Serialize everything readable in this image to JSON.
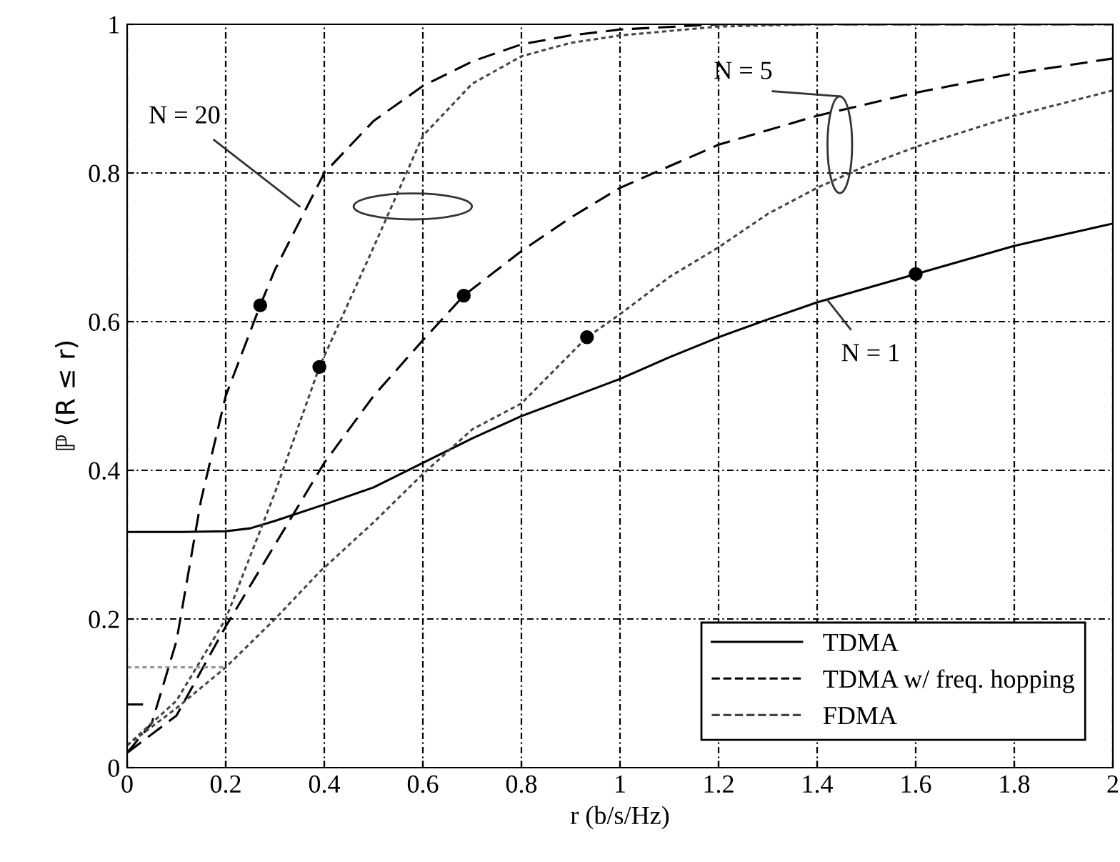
{
  "chart_data": {
    "type": "line",
    "xlabel": "r (b/s/Hz)",
    "ylabel": "ℙ (R ≤ r)",
    "xlim": [
      0,
      2
    ],
    "ylim": [
      0,
      1
    ],
    "xticks": [
      0,
      0.2,
      0.4,
      0.6,
      0.8,
      1,
      1.2,
      1.4,
      1.6,
      1.8,
      2
    ],
    "yticks": [
      0,
      0.2,
      0.4,
      0.6,
      0.8,
      1
    ],
    "grid": true,
    "legend": "bottom right",
    "series": [
      {
        "name": "TDMA",
        "color": "#000000",
        "line_style": "solid",
        "x": [
          0,
          0.1,
          0.2,
          0.25,
          0.3,
          0.4,
          0.5,
          0.6,
          0.7,
          0.8,
          0.9,
          1.0,
          1.1,
          1.2,
          1.3,
          1.4,
          1.5,
          1.6,
          1.7,
          1.8,
          1.9,
          2.0
        ],
        "values": [
          0.317,
          0.317,
          0.318,
          0.322,
          0.332,
          0.354,
          0.377,
          0.41,
          0.443,
          0.473,
          0.498,
          0.523,
          0.552,
          0.579,
          0.603,
          0.626,
          0.645,
          0.664,
          0.683,
          0.702,
          0.717,
          0.732
        ]
      },
      {
        "color": "#000000",
        "line_style": "solid",
        "x": [
          0,
          0.03
        ],
        "values": [
          0.085,
          0.085
        ]
      },
      {
        "name": "TDMA w/ freq. hopping",
        "color": "#000000",
        "line_style": "dashed",
        "x": [
          0,
          0.05,
          0.1,
          0.15,
          0.2,
          0.27,
          0.3,
          0.4,
          0.5,
          0.6,
          0.7,
          0.8,
          0.9,
          1.0,
          1.2,
          1.4,
          2.0
        ],
        "values": [
          0.02,
          0.06,
          0.17,
          0.36,
          0.5,
          0.622,
          0.67,
          0.8,
          0.87,
          0.917,
          0.95,
          0.973,
          0.985,
          0.993,
          1.0,
          1.0,
          1.0
        ]
      },
      {
        "color": "#000000",
        "line_style": "dashed",
        "x": [
          0,
          0.1,
          0.2,
          0.3,
          0.4,
          0.5,
          0.6,
          0.683,
          0.8,
          0.9,
          1.0,
          1.2,
          1.4,
          1.6,
          1.8,
          2.0
        ],
        "values": [
          0.02,
          0.07,
          0.19,
          0.3,
          0.41,
          0.5,
          0.575,
          0.635,
          0.695,
          0.74,
          0.78,
          0.838,
          0.877,
          0.908,
          0.934,
          0.954
        ]
      },
      {
        "name": "FDMA",
        "color": "#444444",
        "line_style": "dotted",
        "x": [
          0,
          0.1,
          0.2,
          0.3,
          0.39,
          0.5,
          0.6,
          0.7,
          0.8,
          0.9,
          1.0,
          1.2,
          1.4,
          2.0
        ],
        "values": [
          0.03,
          0.09,
          0.2,
          0.37,
          0.539,
          0.7,
          0.85,
          0.92,
          0.957,
          0.975,
          0.985,
          0.997,
          1.0,
          1.0
        ]
      },
      {
        "color": "#444444",
        "line_style": "dotted",
        "x": [
          0,
          0.1,
          0.2,
          0.3,
          0.39,
          0.5,
          0.6,
          0.7,
          0.8,
          0.933,
          1.0,
          1.1,
          1.2,
          1.3,
          1.4,
          1.5,
          1.6,
          1.8,
          2.0
        ],
        "values": [
          0.03,
          0.08,
          0.135,
          0.2,
          0.263,
          0.33,
          0.395,
          0.455,
          0.49,
          0.579,
          0.61,
          0.66,
          0.7,
          0.745,
          0.78,
          0.81,
          0.835,
          0.877,
          0.911
        ]
      },
      {
        "color": "#999999",
        "line_style": "dotted",
        "x": [
          0,
          0.2
        ],
        "values": [
          0.135,
          0.135
        ]
      },
      {
        "type": "scatter",
        "color": "#000000",
        "marker": "circle",
        "x": [
          0.27,
          0.39,
          0.683,
          0.933,
          1.6
        ],
        "values": [
          0.622,
          0.539,
          0.635,
          0.579,
          0.664
        ]
      }
    ],
    "annotations": [
      {
        "text": "N = 20",
        "x": 0.35,
        "y": 0.755
      },
      "N = 5",
      {
        "text": "N = 1",
        "x": 1.42,
        "y": 0.63
      }
    ]
  }
}
